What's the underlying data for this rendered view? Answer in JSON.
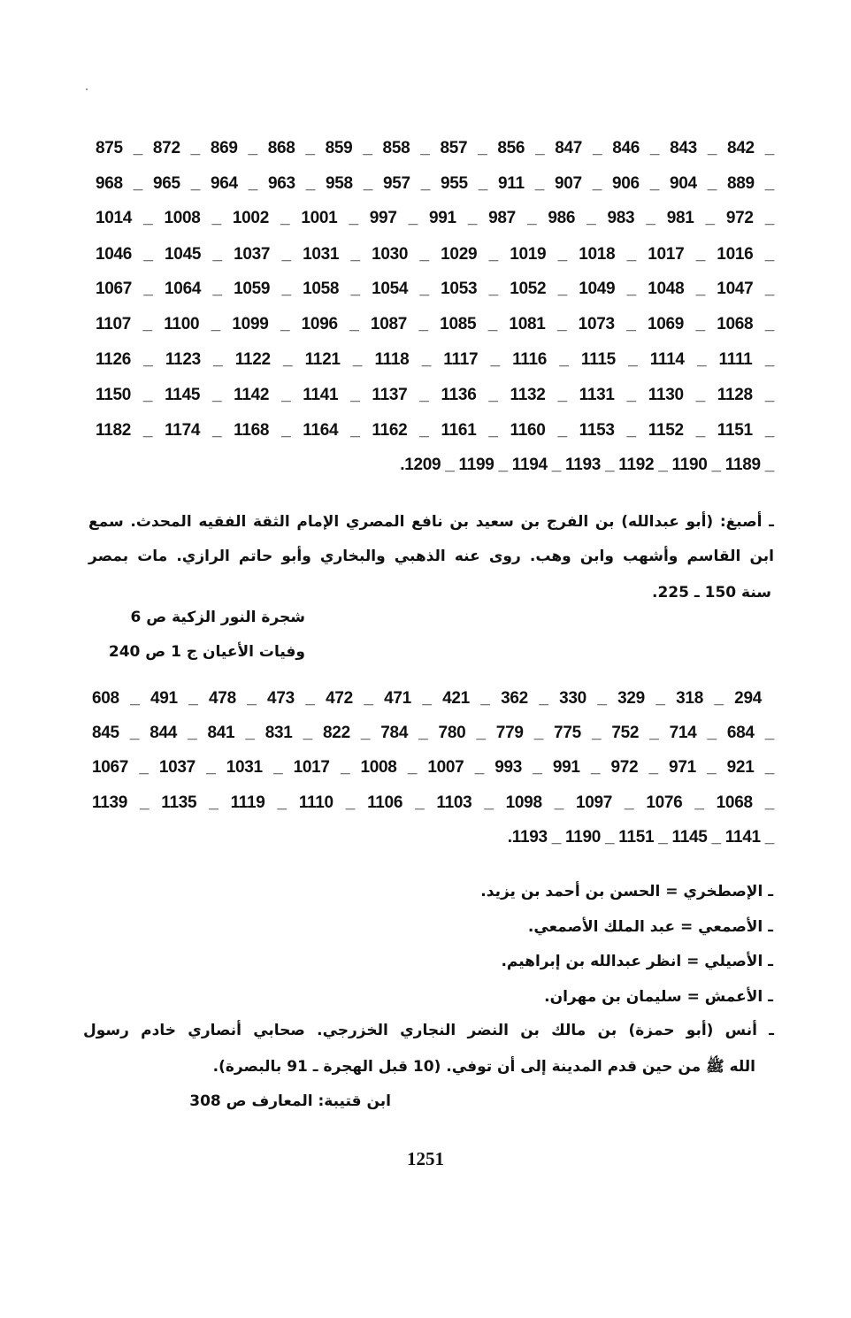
{
  "block1_numbers": [
    "875 _ 872 _ 869 _ 868 _ 859 _ 858 _ 857 _ 856 _ 847 _ 846 _ 843 _ 842 _",
    "968 _ 965 _ 964 _ 963 _ 958 _ 957 _ 955 _ 911 _ 907 _ 906 _ 904 _ 889 _",
    "1014 _ 1008 _ 1002 _ 1001 _ 997 _ 991 _ 987 _ 986 _ 983 _ 981 _ 972 _",
    "1046 _ 1045 _ 1037 _ 1031 _ 1030 _ 1029 _ 1019 _ 1018 _ 1017 _ 1016 _",
    "1067 _ 1064 _ 1059 _ 1058 _ 1054 _ 1053 _ 1052 _ 1049 _ 1048 _ 1047 _",
    "1107 _ 1100 _ 1099 _ 1096 _ 1087 _ 1085 _ 1081 _ 1073 _ 1069 _ 1068 _",
    "1126 _ 1123 _ 1122 _ 1121 _ 1118 _ 1117 _ 1116 _ 1115 _ 1114 _ 1111 _",
    "1150 _ 1145 _ 1142 _ 1141 _ 1137 _ 1136 _ 1132 _ 1131 _ 1130 _ 1128 _",
    "1182 _ 1174 _ 1168 _ 1164 _ 1162 _ 1161 _ 1160 _ 1153 _ 1152 _ 1151 _",
    ".1209 _ 1199 _ 1194 _ 1193 _ 1192 _ 1190 _ 1189 _"
  ],
  "asbagh_entry": {
    "lines": [
      "ـ أصبغ: (أبو عبدالله) بن الفرج بن سعيد بن نافع المصري الإمام الثقة الفقيه المحدث. سمع",
      "ابن القاسم وأشهب وابن وهب. روى عنه الذهبي والبخاري وأبو حاتم الرازي. مات بمصر",
      "سنة 150 ـ 225."
    ],
    "refs": [
      "شجرة النور الزكية ص 6",
      "وفيات الأعيان ج 1 ص 240"
    ]
  },
  "block2_numbers": [
    "608 _ 491 _ 478 _ 473 _ 472 _ 471 _ 421 _ 362 _ 330 _ 329 _ 318 _ 294",
    "845 _ 844 _ 841 _ 831 _ 822 _ 784 _ 780 _ 779 _ 775 _ 752 _ 714 _ 684 _",
    "1067 _ 1037 _ 1031 _ 1017 _ 1008 _ 1007 _ 993 _ 991 _ 972 _ 971 _ 921 _",
    "1139 _ 1135 _ 1119 _ 1110 _ 1106 _ 1103 _ 1098 _ 1097 _ 1076 _ 1068 _",
    ".1193 _ 1190 _ 1151 _ 1145 _ 1141 _"
  ],
  "cross_refs": [
    "ـ الإصطخري = الحسن بن أحمد بن يزيد.",
    "ـ الأصمعي = عبد الملك الأصمعي.",
    "ـ الأصيلي = انظر عبدالله بن إبراهيم.",
    "ـ الأعمش = سليمان بن مهران."
  ],
  "anas_entry": {
    "lines": [
      "ـ أنس (أبو حمزة) بن مالك بن النضر النجاري الخزرجي. صحابي أنصاري خادم رسول",
      "الله ﷺ من حين قدم المدينة إلى أن توفي. (10 قبل الهجرة ـ 91 بالبصرة)."
    ],
    "ref": "ابن قتيبة: المعارف ص 308"
  },
  "page_number": "1251"
}
